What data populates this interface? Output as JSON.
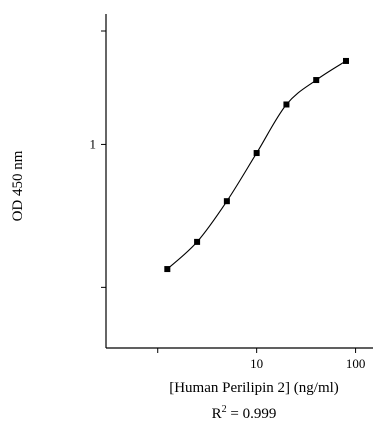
{
  "chart_data": {
    "type": "scatter",
    "xscale": "log",
    "yscale": "log",
    "xlabel": "[Human Perilipin 2] (ng/ml)",
    "ylabel": "OD 450 nm",
    "annotation": {
      "prefix": "R",
      "superscript": "2",
      "suffix": " = 0.999"
    },
    "xlim": [
      0.3,
      150
    ],
    "ylim": [
      0.18,
      3.0
    ],
    "xticks": [
      {
        "value": 10,
        "label": "10"
      },
      {
        "value": 100,
        "label": "100"
      }
    ],
    "yticks": [
      {
        "value": 1,
        "label": "1"
      }
    ],
    "points": [
      {
        "x": 1.25,
        "y": 0.35
      },
      {
        "x": 2.5,
        "y": 0.44
      },
      {
        "x": 5,
        "y": 0.62
      },
      {
        "x": 10,
        "y": 0.93
      },
      {
        "x": 20,
        "y": 1.4
      },
      {
        "x": 40,
        "y": 1.72
      },
      {
        "x": 80,
        "y": 2.02
      }
    ],
    "fit_line": true,
    "grid": false
  }
}
